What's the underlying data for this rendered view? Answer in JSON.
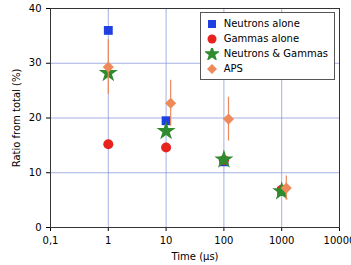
{
  "chart_data": {
    "type": "scatter",
    "x_label": "Time (µs)",
    "y_label": "Ratio from total (%)",
    "log": "x",
    "grid": true,
    "legend": "upper right",
    "xlim": [
      0.1,
      10000
    ],
    "xticks": [
      {
        "value": 0.1,
        "label": "0,1"
      },
      1,
      10,
      100,
      1000,
      10000
    ],
    "ylim": [
      0,
      40
    ],
    "yticks": [
      0,
      10,
      20,
      30,
      40
    ],
    "series": [
      {
        "name": "Neutrons alone",
        "color": "#1f3fe0",
        "marker": "square",
        "x": [
          1,
          10,
          100,
          1000
        ],
        "values": [
          36,
          19.5,
          12,
          6.6
        ]
      },
      {
        "name": "Gammas alone",
        "color": "#e8231e",
        "marker": "circle",
        "x": [
          1,
          10,
          100,
          1000
        ],
        "values": [
          15.2,
          14.6,
          12.3,
          6.9
        ]
      },
      {
        "name": "Neutrons & Gammas",
        "color": "#2e8b2e",
        "marker": "star",
        "x": [
          1,
          10,
          100,
          1000
        ],
        "values": [
          28.2,
          17.6,
          12.4,
          6.6
        ]
      },
      {
        "name": "APS",
        "color": "#ee8a5a",
        "marker": "diamond",
        "x": [
          1,
          12,
          120,
          1200
        ],
        "values": [
          29.3,
          22.7,
          19.8,
          7.2
        ],
        "error": [
          5,
          4.2,
          4,
          2.2
        ]
      }
    ]
  }
}
